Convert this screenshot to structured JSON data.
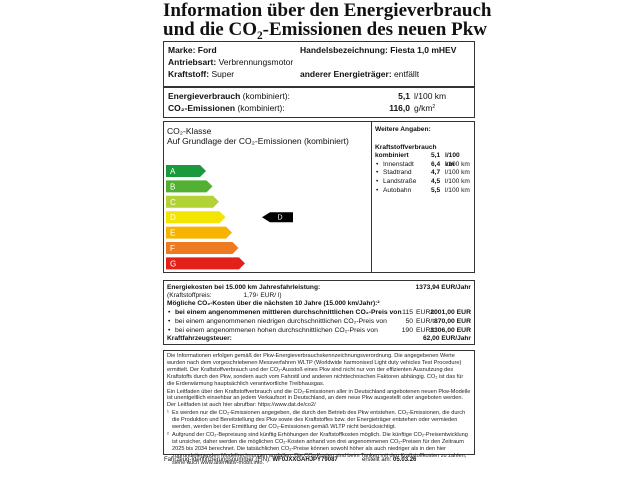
{
  "title": [
    "Information über den Energieverbrauch",
    "und die CO₂-Emissionen des neuen Pkw"
  ],
  "vehicle": {
    "brand_label": "Marke:",
    "brand": "Ford",
    "model_label": "Handelsbezeichnung:",
    "model": "Fiesta 1,0 mHEV",
    "drive_label": "Antriebsart:",
    "drive": "Verbrennungsmotor",
    "fuel_label": "Kraftstoff:",
    "fuel": "Super",
    "other_label": "anderer Energieträger:",
    "other": "entfällt"
  },
  "consumption": {
    "energy_label": "Energieverbrauch",
    "energy_qualifier": "(kombiniert):",
    "energy_value": "5,1",
    "energy_unit": "l/100 km",
    "co2_label": "CO₂-Emissionen",
    "co2_qualifier": "(kombiniert):",
    "co2_value": "116,0",
    "co2_unit": "g/km",
    "co2_note": "2"
  },
  "co2_class": {
    "label": "CO₂-Klasse",
    "basis": "Auf Grundlage der CO₂-Emissionen (kombiniert)",
    "classes": [
      {
        "letter": "A",
        "color": "#1a9a3c"
      },
      {
        "letter": "B",
        "color": "#52b032"
      },
      {
        "letter": "C",
        "color": "#b2d235"
      },
      {
        "letter": "D",
        "color": "#f3e500"
      },
      {
        "letter": "E",
        "color": "#f6b400"
      },
      {
        "letter": "F",
        "color": "#ee7b22"
      },
      {
        "letter": "G",
        "color": "#e3211b"
      }
    ],
    "current": "D"
  },
  "further": {
    "heading": "Weitere Angaben:",
    "subheading": "Kraftstoffverbrauch",
    "combined": {
      "name": "kombiniert",
      "value": "5,1",
      "unit": "l/100 km"
    },
    "rows": [
      {
        "name": "Innenstadt",
        "value": "6,4",
        "unit": "l/100 km"
      },
      {
        "name": "Stadtrand",
        "value": "4,7",
        "unit": "l/100 km"
      },
      {
        "name": "Landstraße",
        "value": "4,5",
        "unit": "l/100 km"
      },
      {
        "name": "Autobahn",
        "value": "5,5",
        "unit": "l/100 km"
      }
    ]
  },
  "costs": {
    "energy_label": "Energiekosten bei 15.000 km Jahresfahrleistung:",
    "energy_value": "1373,94 EUR/Jahr",
    "fuel_price": {
      "label": "(Kraftstoffpreis:",
      "value": "1,79",
      "note": "1",
      "unit": "EUR/ l)"
    },
    "co2_heading": "Mögliche CO₂-Kosten über die nächsten 10 Jahre (15.000 km/Jahr):²",
    "co2_rows": [
      {
        "label": "bei einem angenommenen mittleren durchschnittlichen CO₂-Preis von",
        "price": "115",
        "unit": "EUR/t:",
        "value": "2001,00 EUR"
      },
      {
        "label": "bei einem angenommenen niedrigen durchschnittlichen CO₂-Preis von",
        "price": "50",
        "unit": "EUR/t:",
        "value": "870,00 EUR"
      },
      {
        "label": "bei einem angenommenen hohen durchschnittlichen CO₂-Preis von",
        "price": "190",
        "unit": "EUR/t:",
        "value": "3306,00 EUR"
      }
    ],
    "tax_label": "Kraftfahrzeugsteuer:",
    "tax_value": "62,00 EUR/Jahr"
  },
  "notes": {
    "paragraphs": [
      "Die Informationen erfolgen gemäß der Pkw-Energieverbrauchskennzeichnungsverordnung. Die angegebenen Werte wurden nach dem vorgeschriebenen Messverfahren WLTP (Worldwide harmonised Light duty vehicles Test Procedure) ermittelt. Der Kraftstoffverbrauch und der CO₂-Ausstoß eines Pkw sind nicht nur von der effizienten Ausnutzung des Kraftstoffs durch den Pkw, sondern auch vom Fahrstil und anderen nichttechnischen Faktoren abhängig. CO₂ ist das für die Erderwärmung hauptsächlich verantwortliche Treibhausgas.",
      "Ein Leitfaden über den Kraftstoffverbrauch und die CO₂-Emissionen aller in Deutschland angebotenen neuen Pkw-Modelle ist unentgeltlich einsehbar an jedem Verkaufsort in Deutschland, an dem neue Pkw ausgestellt oder angeboten werden. Der Leitfaden ist auch hier abrufbar: https://www.dat.de/co2/"
    ],
    "footnotes": [
      {
        "mark": "¹",
        "text": "Es werden nur die CO₂-Emissionen angegeben, die durch den Betrieb des Pkw entstehen. CO₂-Emissionen, die durch die Produktion und Bereitstellung des Pkw sowie des Kraftstoffes bzw. der Energieträger entstehen oder vermieden werden, werden bei der Ermittlung der CO₂-Emissionen gemäß WLTP nicht berücksichtigt."
      },
      {
        "mark": "²",
        "text": "Aufgrund der CO₂-Bepreisung sind künftig Erhöhungen der Kraftstoffkosten möglich. Die künftige CO₂-Preisentwicklung ist unsicher, daher werden die möglichen CO₂-Kosten anhand von drei angenommenen CO₂-Preisen für den Zeitraum 2025 bis 2034 berechnet. Die tatsächlichen CO₂-Preise können sowohl höher als auch niedriger als in den hier zugrundeliegenden Modellrechnungen ausfallen. Die CO₂-Kosten sind beim Tanken mit den Kraftstoffkosten zu zahlen, siehe auch www.alternativ-mobil.info."
      }
    ]
  },
  "footer": {
    "vin_label": "Fahrzeug-Identifizierungsnummer (FIN):",
    "vin": "WF0JXXGAHJPY79087",
    "date_label": "erstellt am:",
    "date": "05.03.26"
  }
}
